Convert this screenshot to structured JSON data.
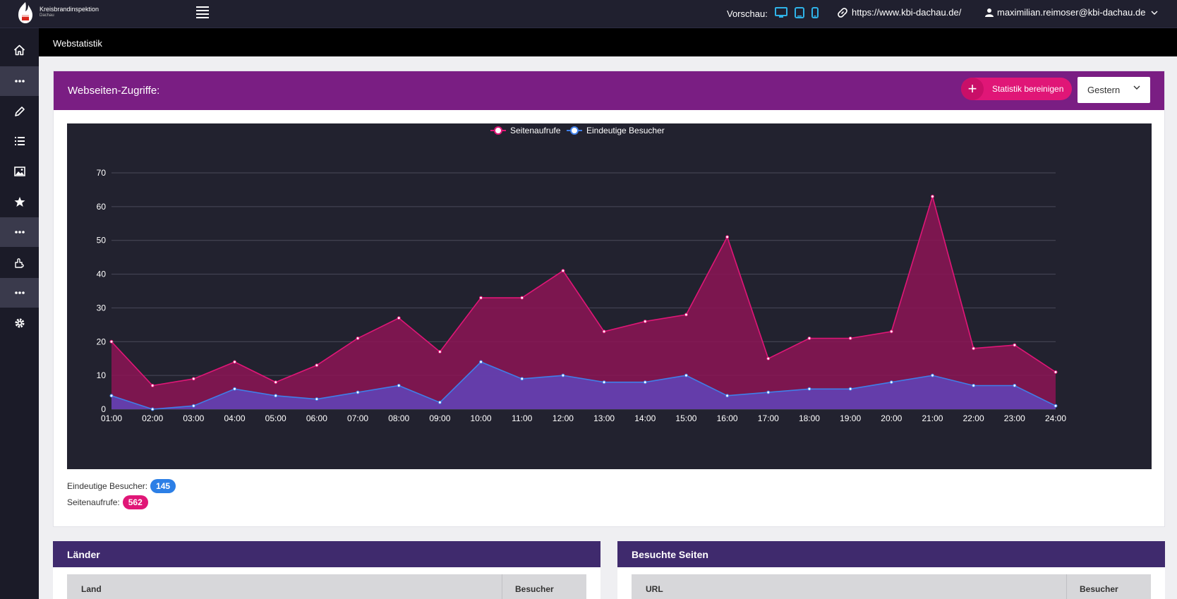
{
  "app": {
    "logo_line1": "Kreisbrandinspektion",
    "logo_line2": "Dachau",
    "preview_label": "Vorschau:",
    "site_url": "https://www.kbi-dachau.de/",
    "user_email": "maximilian.reimoser@kbi-dachau.de"
  },
  "sidebar": {
    "items": [
      {
        "icon": "home-icon"
      },
      {
        "icon": "more-dots-icon"
      },
      {
        "icon": "pencil-icon"
      },
      {
        "icon": "list-icon"
      },
      {
        "icon": "image-icon"
      },
      {
        "icon": "star-icon"
      },
      {
        "icon": "more-dots-icon"
      },
      {
        "icon": "plugin-icon"
      },
      {
        "icon": "more-dots-icon"
      },
      {
        "icon": "gear-icon"
      }
    ]
  },
  "breadcrumb": {
    "title": "Webstatistik"
  },
  "card": {
    "title": "Webseiten-Zugriffe:",
    "clean_button": "Statistik bereinigen",
    "range_select": "Gestern"
  },
  "chart_data": {
    "type": "area",
    "x": [
      "01:00",
      "02:00",
      "03:00",
      "04:00",
      "05:00",
      "06:00",
      "07:00",
      "08:00",
      "09:00",
      "10:00",
      "11:00",
      "12:00",
      "13:00",
      "14:00",
      "15:00",
      "16:00",
      "17:00",
      "18:00",
      "19:00",
      "20:00",
      "21:00",
      "22:00",
      "23:00",
      "24:00"
    ],
    "series": [
      {
        "name": "Seitenaufrufe",
        "color": "#e01677",
        "values": [
          20,
          7,
          9,
          14,
          8,
          13,
          21,
          27,
          17,
          33,
          33,
          41,
          23,
          26,
          28,
          51,
          15,
          21,
          21,
          23,
          63,
          18,
          19,
          11
        ]
      },
      {
        "name": "Eindeutige Besucher",
        "color": "#3f7fe8",
        "values": [
          4,
          0,
          1,
          6,
          4,
          3,
          5,
          7,
          2,
          14,
          9,
          10,
          8,
          8,
          10,
          4,
          5,
          6,
          6,
          8,
          10,
          7,
          7,
          1
        ]
      }
    ],
    "yticks": [
      0,
      10,
      20,
      30,
      40,
      50,
      60,
      70
    ],
    "ylim": [
      0,
      70
    ],
    "grid": true,
    "legend": "top-center"
  },
  "stats": {
    "visitors_label": "Eindeutige Besucher:",
    "visitors_value": "145",
    "views_label": "Seitenaufrufe:",
    "views_value": "562"
  },
  "panels": {
    "countries": {
      "title": "Länder",
      "col1": "Land",
      "col2": "Besucher"
    },
    "pages": {
      "title": "Besuchte Seiten",
      "col1": "URL",
      "col2": "Besucher"
    }
  },
  "colors": {
    "card_header": "#7a1e83",
    "panel_header": "#3f2a6d",
    "accent_pink": "#e01677",
    "accent_blue": "#2c7fe6",
    "device_icons": "#2fb3e8"
  }
}
